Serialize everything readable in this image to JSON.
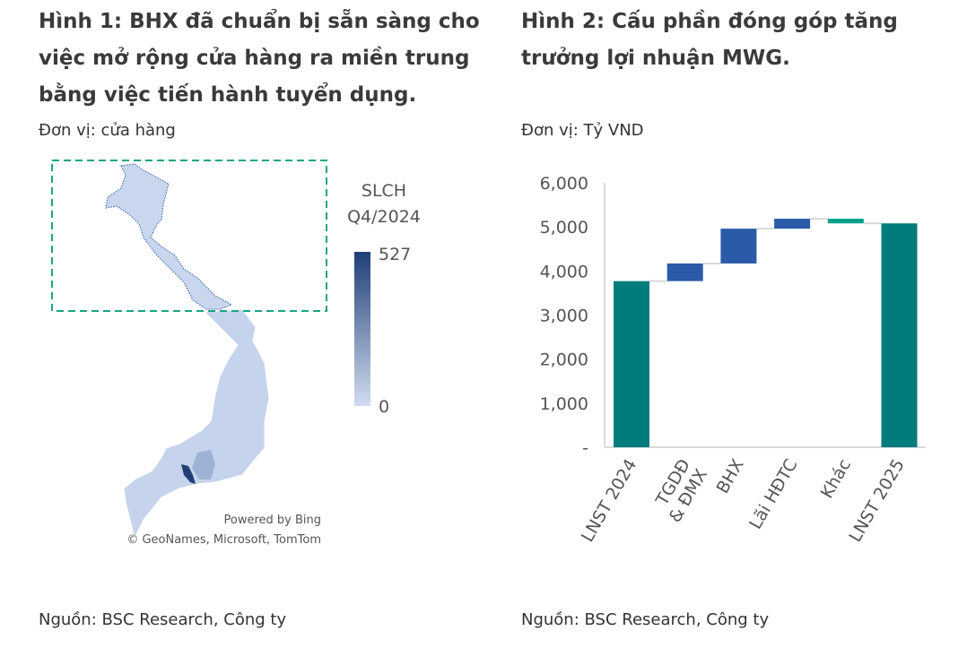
{
  "figure1": {
    "title": "Hình 1: BHX đã chuẩn bị sẵn sàng cho việc mở rộng cửa hàng ra miền trung bằng việc tiến hành tuyển dụng.",
    "unit": "Đơn vị: cửa hàng",
    "legend_title_1": "SLCH",
    "legend_title_2": "Q4/2024",
    "legend_max": "527",
    "legend_min": "0",
    "attribution_1": "Powered by Bing",
    "attribution_2": "© GeoNames, Microsoft, TomTom",
    "source": "Nguồn: BSC Research, Công ty",
    "colors": {
      "low": "#d2dcf0",
      "high": "#1f3f77",
      "highlight_box": "#1aa584"
    }
  },
  "figure2": {
    "title_1": "Hình 2: Cấu phần đóng góp tăng",
    "title_2": "trưởng lợi nhuận MWG.",
    "unit": "Đơn vị: Tỷ VND",
    "source": "Nguồn: BSC Research, Công ty"
  },
  "chart_data": {
    "type": "waterfall",
    "title": "Cấu phần đóng góp tăng trưởng lợi nhuận MWG",
    "ylabel": "Tỷ VND",
    "ylim": [
      0,
      6000
    ],
    "yticks": [
      "-",
      "1,000",
      "2,000",
      "3,000",
      "4,000",
      "5,000",
      "6,000"
    ],
    "categories": [
      "LNST 2024",
      "TGDĐ & ĐMX",
      "BHX",
      "Lãi HĐTC",
      "Khác",
      "LNST 2025"
    ],
    "values": [
      3770,
      400,
      790,
      225,
      -105,
      5080
    ],
    "kinds": [
      "total",
      "delta",
      "delta",
      "delta",
      "delta",
      "total"
    ],
    "colors": {
      "total": "#007c7c",
      "increase": "#2b5ba8",
      "decrease": "#00a08a"
    }
  }
}
